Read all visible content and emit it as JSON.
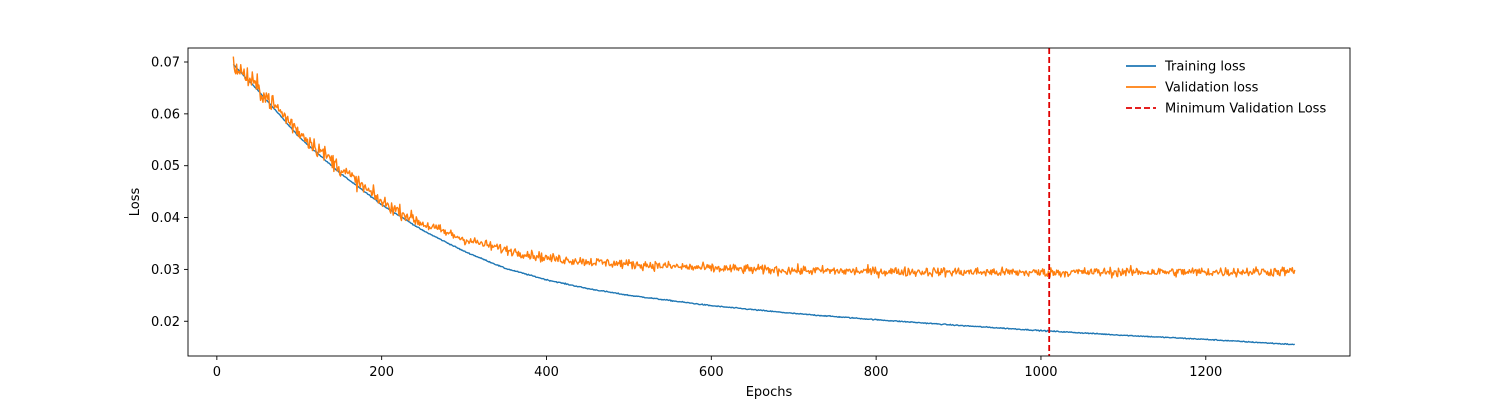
{
  "chart_data": {
    "type": "line",
    "title": "",
    "xlabel": "Epochs",
    "ylabel": "Loss",
    "xlim": [
      -35,
      1375
    ],
    "ylim": [
      0.0133,
      0.0727
    ],
    "xticks": [
      0,
      200,
      400,
      600,
      800,
      1000,
      1200
    ],
    "yticks": [
      0.02,
      0.03,
      0.04,
      0.05,
      0.06,
      0.07
    ],
    "xtick_labels": [
      "0",
      "200",
      "400",
      "600",
      "800",
      "1000",
      "1200"
    ],
    "ytick_labels": [
      "0.02",
      "0.03",
      "0.04",
      "0.05",
      "0.06",
      "0.07"
    ],
    "grid": false,
    "legend_position": "top-right",
    "series": [
      {
        "name": "Training loss",
        "color": "#1f77b4",
        "style": "solid",
        "x": [
          20,
          50,
          100,
          150,
          200,
          250,
          300,
          350,
          400,
          450,
          500,
          600,
          700,
          800,
          900,
          1000,
          1100,
          1200,
          1308
        ],
        "y": [
          0.0695,
          0.0645,
          0.0555,
          0.0485,
          0.0425,
          0.0375,
          0.0335,
          0.0302,
          0.028,
          0.0263,
          0.025,
          0.023,
          0.0215,
          0.0203,
          0.0192,
          0.0182,
          0.0173,
          0.0165,
          0.0155
        ]
      },
      {
        "name": "Validation loss",
        "color": "#ff7f0e",
        "style": "solid",
        "x": [
          20,
          50,
          100,
          150,
          200,
          250,
          300,
          350,
          400,
          450,
          500,
          600,
          700,
          800,
          900,
          1000,
          1100,
          1200,
          1308
        ],
        "y": [
          0.0695,
          0.065,
          0.0565,
          0.0495,
          0.043,
          0.0388,
          0.0358,
          0.0338,
          0.0322,
          0.0315,
          0.031,
          0.0302,
          0.0298,
          0.0296,
          0.0295,
          0.0294,
          0.0295,
          0.0295,
          0.0296
        ]
      }
    ],
    "vlines": [
      {
        "name": "Minimum Validation Loss",
        "x": 1010,
        "color": "#e00000",
        "style": "dashed"
      }
    ]
  }
}
